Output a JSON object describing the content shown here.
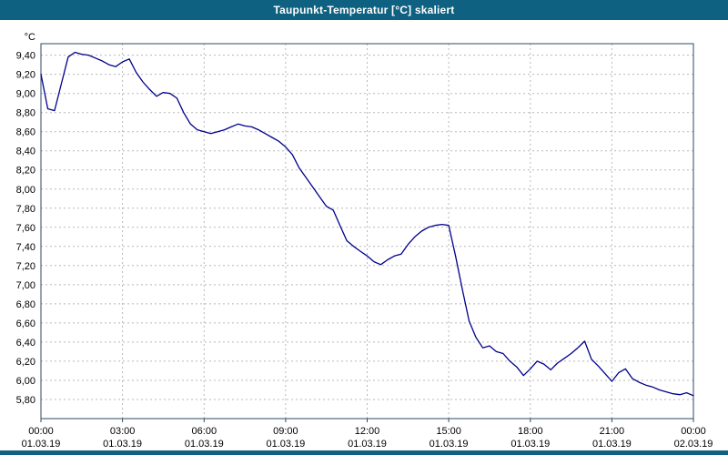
{
  "window": {
    "title": "Taupunkt-Temperatur [°C] skaliert"
  },
  "colors": {
    "titlebar_bg": "#0e6180",
    "titlebar_text": "#ffffff",
    "plot_bg": "#ffffff",
    "grid": "#b8b8b8",
    "frame": "#2e4a66",
    "line": "#00008c",
    "tick_text": "#000000"
  },
  "chart_data": {
    "type": "line",
    "title": "Taupunkt-Temperatur [°C] skaliert",
    "xlabel": "",
    "ylabel": "°C",
    "grid": "dashed",
    "legend": "none",
    "xlim_hours": [
      0,
      24
    ],
    "ylim": [
      5.6,
      9.52
    ],
    "y_ticks": [
      9.4,
      9.2,
      9.0,
      8.8,
      8.6,
      8.4,
      8.2,
      8.0,
      7.8,
      7.6,
      7.4,
      7.2,
      7.0,
      6.8,
      6.6,
      6.4,
      6.2,
      6.0,
      5.8
    ],
    "y_tick_labels": [
      "9,40",
      "9,20",
      "9,00",
      "8,80",
      "8,60",
      "8,40",
      "8,20",
      "8,00",
      "7,80",
      "7,60",
      "7,40",
      "7,20",
      "7,00",
      "6,80",
      "6,60",
      "6,40",
      "6,20",
      "6,00",
      "5,80"
    ],
    "x_ticks_hours": [
      0,
      3,
      6,
      9,
      12,
      15,
      18,
      21,
      24
    ],
    "x_tick_time_labels": [
      "00:00",
      "03:00",
      "06:00",
      "09:00",
      "12:00",
      "15:00",
      "18:00",
      "21:00",
      "00:00"
    ],
    "x_tick_date_labels": [
      "01.03.19",
      "01.03.19",
      "01.03.19",
      "01.03.19",
      "01.03.19",
      "01.03.19",
      "01.03.19",
      "01.03.19",
      "02.03.19"
    ],
    "series": [
      {
        "name": "Taupunkt-Temperatur [°C]",
        "x": [
          0,
          0.25,
          0.5,
          0.75,
          1,
          1.25,
          1.5,
          1.75,
          2,
          2.25,
          2.5,
          2.75,
          3,
          3.25,
          3.5,
          3.75,
          4,
          4.25,
          4.5,
          4.75,
          5,
          5.25,
          5.5,
          5.75,
          6,
          6.25,
          6.5,
          6.75,
          7,
          7.25,
          7.5,
          7.75,
          8,
          8.25,
          8.5,
          8.75,
          9,
          9.25,
          9.5,
          9.75,
          10,
          10.25,
          10.5,
          10.75,
          11,
          11.25,
          11.5,
          11.75,
          12,
          12.25,
          12.5,
          12.75,
          13,
          13.25,
          13.5,
          13.75,
          14,
          14.25,
          14.5,
          14.75,
          15,
          15.25,
          15.5,
          15.75,
          16,
          16.25,
          16.5,
          16.75,
          17,
          17.25,
          17.5,
          17.75,
          18,
          18.25,
          18.5,
          18.75,
          19,
          19.25,
          19.5,
          19.75,
          20,
          20.25,
          20.5,
          20.75,
          21,
          21.25,
          21.5,
          21.75,
          22,
          22.25,
          22.5,
          22.75,
          23,
          23.25,
          23.5,
          23.75,
          24
        ],
        "y": [
          9.2,
          8.84,
          8.82,
          9.1,
          9.38,
          9.43,
          9.41,
          9.4,
          9.37,
          9.34,
          9.3,
          9.28,
          9.33,
          9.36,
          9.22,
          9.12,
          9.04,
          8.97,
          9.01,
          9.0,
          8.95,
          8.8,
          8.68,
          8.62,
          8.6,
          8.58,
          8.6,
          8.62,
          8.65,
          8.68,
          8.66,
          8.65,
          8.62,
          8.58,
          8.54,
          8.5,
          8.44,
          8.36,
          8.22,
          8.12,
          8.02,
          7.92,
          7.82,
          7.78,
          7.62,
          7.46,
          7.4,
          7.35,
          7.3,
          7.24,
          7.21,
          7.26,
          7.3,
          7.32,
          7.42,
          7.5,
          7.56,
          7.6,
          7.62,
          7.63,
          7.62,
          7.3,
          6.95,
          6.62,
          6.45,
          6.34,
          6.36,
          6.3,
          6.28,
          6.2,
          6.14,
          6.05,
          6.12,
          6.2,
          6.17,
          6.11,
          6.18,
          6.23,
          6.28,
          6.34,
          6.41,
          6.22,
          6.15,
          6.07,
          5.99,
          6.08,
          6.12,
          6.02,
          5.98,
          5.95,
          5.93,
          5.9,
          5.88,
          5.86,
          5.85,
          5.87,
          5.84
        ]
      }
    ]
  }
}
